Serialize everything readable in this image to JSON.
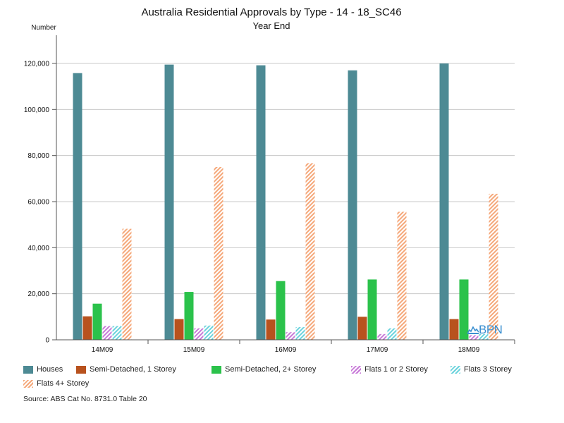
{
  "chart_data": {
    "type": "bar",
    "title": "Australia Residential Approvals by Type - 14 - 18_SC46",
    "subtitle": "Year End",
    "ylabel": "Number",
    "xlabel": "",
    "ylim": [
      0,
      120000
    ],
    "yticks": [
      "0",
      "20,000",
      "40,000",
      "60,000",
      "80,000",
      "100,000",
      "120,000"
    ],
    "ytick_values": [
      0,
      20000,
      40000,
      60000,
      80000,
      100000,
      120000
    ],
    "categories": [
      "14M09",
      "15M09",
      "16M09",
      "17M09",
      "18M09"
    ],
    "grid": true,
    "legend_position": "bottom",
    "series": [
      {
        "name": "Houses",
        "color": "#4d8a94",
        "pattern": "solid",
        "values": [
          115800,
          119500,
          119200,
          117000,
          120000
        ]
      },
      {
        "name": "Semi-Detached, 1 Storey",
        "color": "#b8521e",
        "pattern": "solid",
        "values": [
          10200,
          9000,
          8800,
          10000,
          9000
        ]
      },
      {
        "name": "Semi-Detached, 2+ Storey",
        "color": "#2bc24b",
        "pattern": "solid",
        "values": [
          15700,
          20800,
          25500,
          26200,
          26200
        ]
      },
      {
        "name": "Flats 1 or 2 Storey",
        "color": "#c87ad8",
        "pattern": "hatch",
        "values": [
          6000,
          5000,
          3300,
          2500,
          2000
        ]
      },
      {
        "name": "Flats 3 Storey",
        "color": "#6cd3dc",
        "pattern": "hatch",
        "values": [
          6000,
          6200,
          5500,
          5000,
          2500
        ]
      },
      {
        "name": "Flats 4+ Storey",
        "color": "#f5a87a",
        "pattern": "hatch",
        "values": [
          48200,
          75000,
          76700,
          55600,
          63400
        ]
      }
    ]
  },
  "source": "Source: ABS Cat No. 8731.0 Table 20",
  "logo_text": "BPN"
}
